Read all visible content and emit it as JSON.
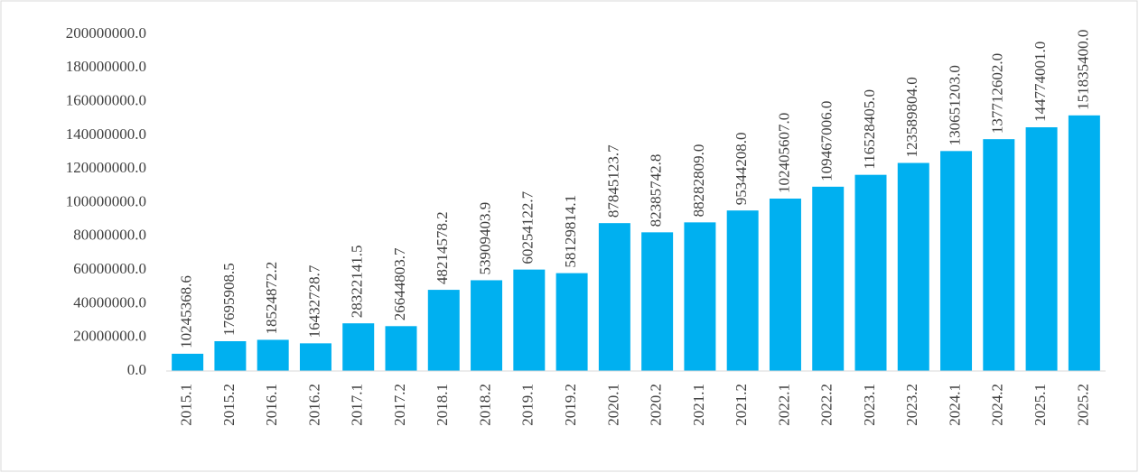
{
  "chart_data": {
    "type": "bar",
    "categories": [
      "2015.1",
      "2015.2",
      "2016.1",
      "2016.2",
      "2017.1",
      "2017.2",
      "2018.1",
      "2018.2",
      "2019.1",
      "2019.2",
      "2020.1",
      "2020.2",
      "2021.1",
      "2021.2",
      "2022.1",
      "2022.2",
      "2023.1",
      "2023.2",
      "2024.1",
      "2024.2",
      "2025.1",
      "2025.2"
    ],
    "values": [
      10245368.6,
      17695908.5,
      18524872.2,
      16432728.7,
      28322141.5,
      26644803.7,
      48214578.2,
      53909403.9,
      60254122.7,
      58129814.1,
      87845123.7,
      82385742.8,
      88282809.0,
      95344208.0,
      102405607.0,
      109467006.0,
      116528405.0,
      123589804.0,
      130651203.0,
      137712602.0,
      144774001.0,
      151835400.0
    ],
    "value_labels": [
      "10245368.6",
      "17695908.5",
      "18524872.2",
      "16432728.7",
      "28322141.5",
      "26644803.7",
      "48214578.2",
      "53909403.9",
      "60254122.7",
      "58129814.1",
      "87845123.7",
      "82385742.8",
      "88282809.0",
      "95344208.0",
      "102405607.0",
      "109467006.0",
      "116528405.0",
      "123589804.0",
      "130651203.0",
      "137712602.0",
      "144774001.0",
      "151835400.0"
    ],
    "color": "#00b0f0",
    "ylim": [
      0,
      200000000
    ],
    "yticks": [
      {
        "value": 0,
        "label": "0.0"
      },
      {
        "value": 20000000,
        "label": "20000000.0"
      },
      {
        "value": 40000000,
        "label": "40000000.0"
      },
      {
        "value": 60000000,
        "label": "60000000.0"
      },
      {
        "value": 80000000,
        "label": "80000000.0"
      },
      {
        "value": 100000000,
        "label": "100000000.0"
      },
      {
        "value": 120000000,
        "label": "120000000.0"
      },
      {
        "value": 140000000,
        "label": "140000000.0"
      },
      {
        "value": 160000000,
        "label": "160000000.0"
      },
      {
        "value": 180000000,
        "label": "180000000.0"
      },
      {
        "value": 200000000,
        "label": "200000000.0"
      }
    ],
    "grid": false
  }
}
